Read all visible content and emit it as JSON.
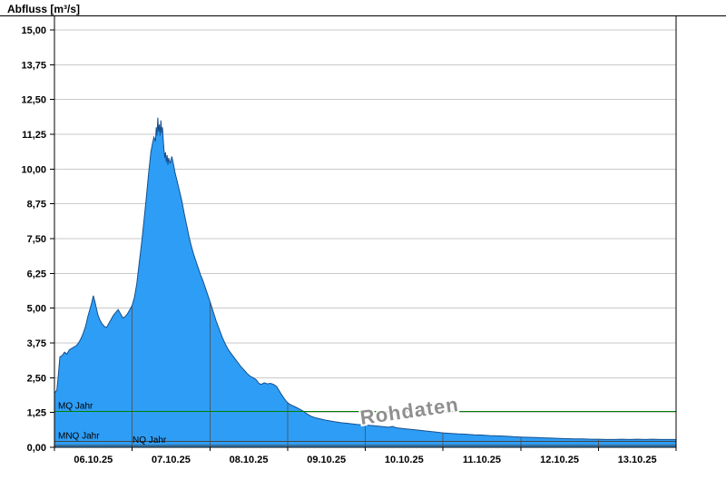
{
  "title": "Abfluss [m³/s]",
  "chart_data": {
    "type": "area",
    "title": "Abfluss [m³/s]",
    "ylabel": "Abfluss [m³/s]",
    "watermark": "Rohdaten",
    "ylim": [
      0,
      15
    ],
    "ytick_step": 1.25,
    "ytick_labels": [
      "0,00",
      "1,25",
      "2,50",
      "3,75",
      "5,00",
      "6,25",
      "7,50",
      "8,75",
      "10,00",
      "11,25",
      "12,50",
      "13,75",
      "15,00"
    ],
    "x_tick_labels": [
      "06.10.25",
      "07.10.25",
      "08.10.25",
      "09.10.25",
      "10.10.25",
      "11.10.25",
      "12.10.25",
      "13.10.25"
    ],
    "x_range_days": [
      0,
      8
    ],
    "grid": true,
    "legend": "none",
    "colors": {
      "area_fill": "#2e9df5",
      "area_stroke": "#15508f",
      "grid": "#c9c9c9",
      "day_grid": "#4d5a66",
      "axis": "#000000",
      "mq_line": "#008000",
      "low_line": "#444444",
      "watermark": "#8f8f8f"
    },
    "reference_lines": [
      {
        "label": "MQ Jahr",
        "value": 1.29,
        "color": "#008000"
      },
      {
        "label": "MNQ Jahr",
        "value": 0.22,
        "color": "#444444"
      },
      {
        "label": "NQ Jahr",
        "value": 0.06,
        "color": "#444444"
      }
    ],
    "series": [
      {
        "name": "Abfluss Rohdaten",
        "unit": "m³/s",
        "points": [
          [
            0.0,
            1.95
          ],
          [
            0.03,
            2.05
          ],
          [
            0.05,
            2.6
          ],
          [
            0.07,
            3.25
          ],
          [
            0.1,
            3.3
          ],
          [
            0.13,
            3.42
          ],
          [
            0.16,
            3.35
          ],
          [
            0.19,
            3.5
          ],
          [
            0.22,
            3.55
          ],
          [
            0.25,
            3.6
          ],
          [
            0.28,
            3.65
          ],
          [
            0.31,
            3.75
          ],
          [
            0.34,
            3.9
          ],
          [
            0.37,
            4.1
          ],
          [
            0.4,
            4.35
          ],
          [
            0.43,
            4.7
          ],
          [
            0.46,
            5.0
          ],
          [
            0.48,
            5.2
          ],
          [
            0.5,
            5.45
          ],
          [
            0.52,
            5.25
          ],
          [
            0.54,
            5.0
          ],
          [
            0.56,
            4.75
          ],
          [
            0.58,
            4.6
          ],
          [
            0.61,
            4.45
          ],
          [
            0.64,
            4.35
          ],
          [
            0.67,
            4.3
          ],
          [
            0.7,
            4.45
          ],
          [
            0.73,
            4.6
          ],
          [
            0.76,
            4.75
          ],
          [
            0.79,
            4.85
          ],
          [
            0.82,
            4.95
          ],
          [
            0.85,
            4.8
          ],
          [
            0.88,
            4.65
          ],
          [
            0.91,
            4.7
          ],
          [
            0.94,
            4.8
          ],
          [
            0.97,
            4.95
          ],
          [
            1.0,
            5.1
          ],
          [
            1.03,
            5.4
          ],
          [
            1.06,
            5.9
          ],
          [
            1.09,
            6.6
          ],
          [
            1.12,
            7.3
          ],
          [
            1.15,
            8.1
          ],
          [
            1.18,
            8.9
          ],
          [
            1.21,
            9.8
          ],
          [
            1.24,
            10.6
          ],
          [
            1.26,
            10.9
          ],
          [
            1.28,
            11.15
          ],
          [
            1.3,
            11.0
          ],
          [
            1.31,
            11.5
          ],
          [
            1.32,
            11.2
          ],
          [
            1.33,
            11.85
          ],
          [
            1.34,
            11.35
          ],
          [
            1.35,
            11.6
          ],
          [
            1.36,
            11.2
          ],
          [
            1.37,
            11.75
          ],
          [
            1.38,
            11.3
          ],
          [
            1.39,
            11.5
          ],
          [
            1.4,
            11.05
          ],
          [
            1.41,
            10.7
          ],
          [
            1.42,
            10.4
          ],
          [
            1.43,
            10.6
          ],
          [
            1.44,
            10.25
          ],
          [
            1.45,
            10.5
          ],
          [
            1.46,
            10.15
          ],
          [
            1.47,
            10.4
          ],
          [
            1.49,
            10.2
          ],
          [
            1.51,
            10.45
          ],
          [
            1.53,
            10.2
          ],
          [
            1.55,
            9.9
          ],
          [
            1.58,
            9.55
          ],
          [
            1.61,
            9.2
          ],
          [
            1.64,
            8.85
          ],
          [
            1.67,
            8.4
          ],
          [
            1.7,
            8.0
          ],
          [
            1.73,
            7.6
          ],
          [
            1.76,
            7.25
          ],
          [
            1.79,
            6.95
          ],
          [
            1.82,
            6.7
          ],
          [
            1.85,
            6.45
          ],
          [
            1.88,
            6.2
          ],
          [
            1.91,
            6.0
          ],
          [
            1.94,
            5.75
          ],
          [
            1.97,
            5.5
          ],
          [
            2.0,
            5.25
          ],
          [
            2.04,
            4.9
          ],
          [
            2.08,
            4.55
          ],
          [
            2.12,
            4.25
          ],
          [
            2.16,
            3.95
          ],
          [
            2.2,
            3.7
          ],
          [
            2.24,
            3.5
          ],
          [
            2.28,
            3.35
          ],
          [
            2.32,
            3.2
          ],
          [
            2.36,
            3.05
          ],
          [
            2.4,
            2.9
          ],
          [
            2.44,
            2.78
          ],
          [
            2.48,
            2.65
          ],
          [
            2.52,
            2.55
          ],
          [
            2.56,
            2.5
          ],
          [
            2.6,
            2.42
          ],
          [
            2.63,
            2.3
          ],
          [
            2.66,
            2.26
          ],
          [
            2.7,
            2.32
          ],
          [
            2.74,
            2.28
          ],
          [
            2.78,
            2.3
          ],
          [
            2.82,
            2.26
          ],
          [
            2.86,
            2.18
          ],
          [
            2.9,
            2.0
          ],
          [
            2.94,
            1.82
          ],
          [
            2.98,
            1.66
          ],
          [
            3.02,
            1.56
          ],
          [
            3.06,
            1.5
          ],
          [
            3.1,
            1.45
          ],
          [
            3.15,
            1.38
          ],
          [
            3.2,
            1.3
          ],
          [
            3.25,
            1.2
          ],
          [
            3.3,
            1.12
          ],
          [
            3.35,
            1.07
          ],
          [
            3.4,
            1.03
          ],
          [
            3.45,
            1.0
          ],
          [
            3.5,
            0.97
          ],
          [
            3.6,
            0.92
          ],
          [
            3.7,
            0.88
          ],
          [
            3.8,
            0.85
          ],
          [
            3.9,
            0.82
          ],
          [
            4.0,
            0.8
          ],
          [
            4.1,
            0.78
          ],
          [
            4.2,
            0.75
          ],
          [
            4.3,
            0.72
          ],
          [
            4.35,
            0.75
          ],
          [
            4.4,
            0.7
          ],
          [
            4.5,
            0.67
          ],
          [
            4.6,
            0.64
          ],
          [
            4.7,
            0.61
          ],
          [
            4.8,
            0.58
          ],
          [
            4.9,
            0.55
          ],
          [
            5.0,
            0.52
          ],
          [
            5.1,
            0.5
          ],
          [
            5.2,
            0.48
          ],
          [
            5.3,
            0.47
          ],
          [
            5.4,
            0.45
          ],
          [
            5.5,
            0.44
          ],
          [
            5.6,
            0.42
          ],
          [
            5.7,
            0.41
          ],
          [
            5.8,
            0.4
          ],
          [
            5.9,
            0.38
          ],
          [
            6.0,
            0.37
          ],
          [
            6.1,
            0.36
          ],
          [
            6.2,
            0.35
          ],
          [
            6.3,
            0.34
          ],
          [
            6.4,
            0.33
          ],
          [
            6.5,
            0.32
          ],
          [
            6.6,
            0.31
          ],
          [
            6.7,
            0.3
          ],
          [
            6.8,
            0.3
          ],
          [
            6.9,
            0.29
          ],
          [
            7.0,
            0.29
          ],
          [
            7.1,
            0.28
          ],
          [
            7.2,
            0.28
          ],
          [
            7.3,
            0.29
          ],
          [
            7.4,
            0.28
          ],
          [
            7.5,
            0.29
          ],
          [
            7.6,
            0.28
          ],
          [
            7.7,
            0.29
          ],
          [
            7.8,
            0.28
          ],
          [
            7.9,
            0.28
          ],
          [
            8.0,
            0.28
          ]
        ]
      }
    ]
  }
}
